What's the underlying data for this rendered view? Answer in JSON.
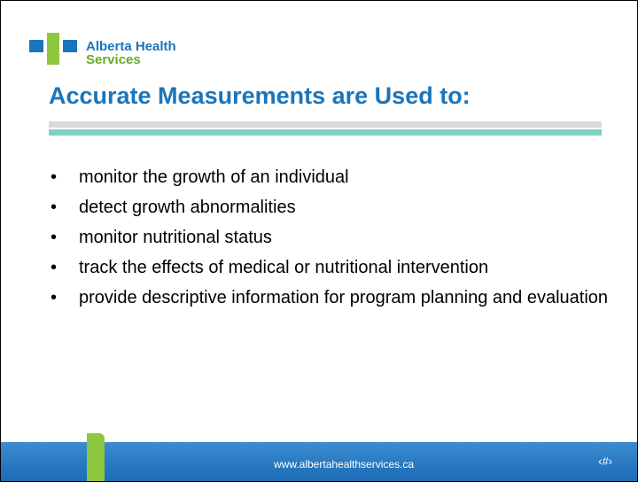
{
  "header": {
    "brand_line1": "Alberta Health",
    "brand_line2": "Services",
    "title": "Accurate Measurements are Used to:"
  },
  "bullets": [
    "monitor the growth of an individual",
    "detect growth abnormalities",
    "monitor nutritional status",
    "track the effects of medical or nutritional intervention",
    "provide descriptive information for program planning and evaluation"
  ],
  "footer": {
    "url": "www.albertahealthservices.ca",
    "page": "‹#›"
  }
}
